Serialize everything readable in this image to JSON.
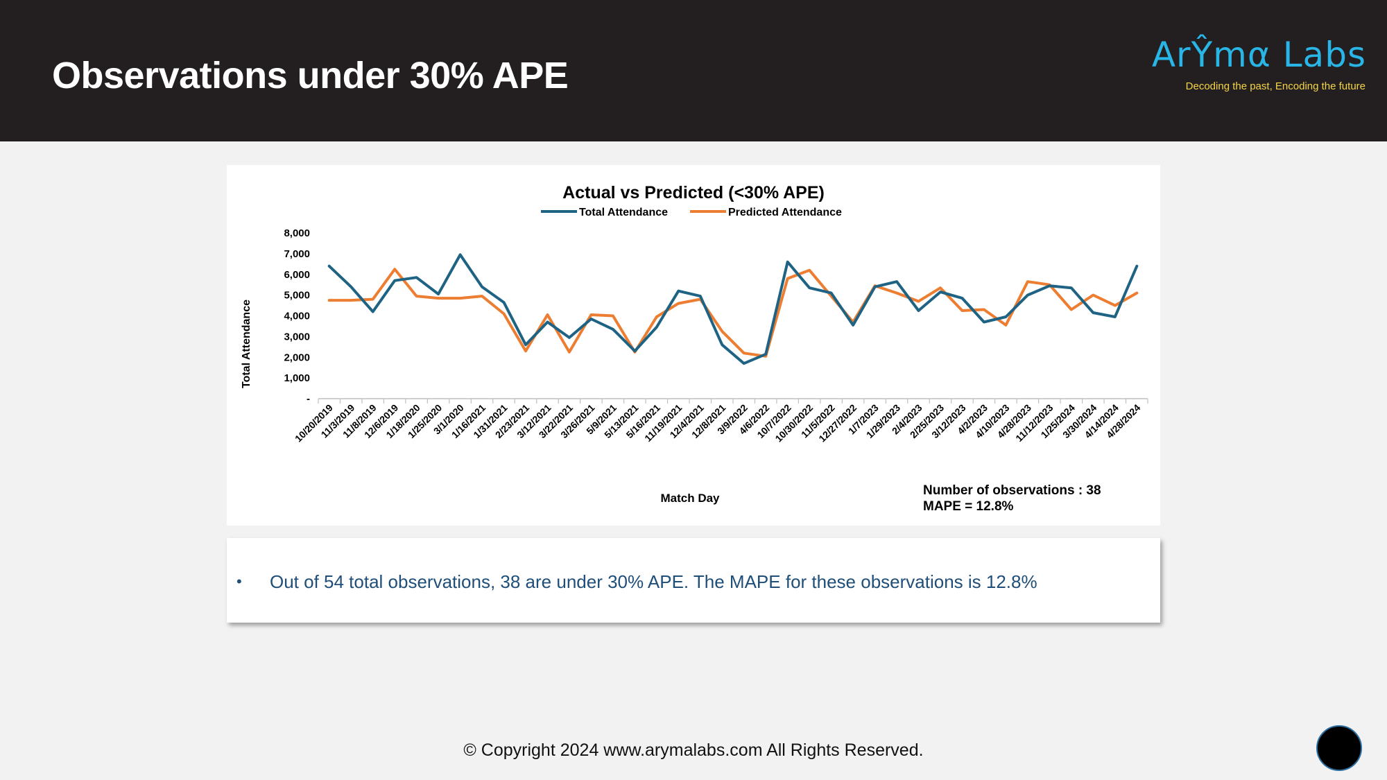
{
  "header": {
    "title": "Observations under 30% APE",
    "logo": {
      "name": "ArŶmα Labs",
      "tagline": "Decoding the past, Encoding the future"
    }
  },
  "chart_data": {
    "type": "line",
    "title": "Actual vs Predicted (<30% APE)",
    "xlabel": "Match Day",
    "ylabel": "Total Attendance",
    "ylim": [
      0,
      8000
    ],
    "yticks": [
      "-",
      "1,000",
      "2,000",
      "3,000",
      "4,000",
      "5,000",
      "6,000",
      "7,000",
      "8,000"
    ],
    "ytick_values": [
      0,
      1000,
      2000,
      3000,
      4000,
      5000,
      6000,
      7000,
      8000
    ],
    "legend_position": "top-center",
    "grid": false,
    "categories": [
      "10/20/2019",
      "11/3/2019",
      "11/8/2019",
      "12/6/2019",
      "1/18/2020",
      "1/25/2020",
      "3/1/2020",
      "1/16/2021",
      "1/31/2021",
      "2/23/2021",
      "3/12/2021",
      "3/22/2021",
      "3/26/2021",
      "5/9/2021",
      "5/13/2021",
      "5/16/2021",
      "11/19/2021",
      "12/4/2021",
      "12/8/2021",
      "3/9/2022",
      "4/6/2022",
      "10/7/2022",
      "10/30/2022",
      "11/5/2022",
      "12/27/2022",
      "1/7/2023",
      "1/29/2023",
      "2/4/2023",
      "2/25/2023",
      "3/12/2023",
      "4/2/2023",
      "4/10/2023",
      "4/28/2023",
      "11/12/2023",
      "1/25/2024",
      "3/30/2024",
      "4/14/2024",
      "4/28/2024"
    ],
    "series": [
      {
        "name": "Total Attendance",
        "color": "#1f6384",
        "values": [
          6400,
          5400,
          4200,
          5700,
          5850,
          5050,
          6950,
          5400,
          4650,
          2600,
          3700,
          2950,
          3850,
          3350,
          2300,
          3450,
          5200,
          4950,
          2600,
          1700,
          2150,
          6600,
          5350,
          5100,
          3550,
          5400,
          5650,
          4250,
          5150,
          4850,
          3700,
          3950,
          5000,
          5450,
          5350,
          4150,
          3950,
          6400
        ]
      },
      {
        "name": "Predicted Attendance",
        "color": "#ed7d31",
        "values": [
          4750,
          4750,
          4800,
          6250,
          4950,
          4850,
          4850,
          4950,
          4100,
          2300,
          4050,
          2250,
          4050,
          4000,
          2250,
          3950,
          4600,
          4800,
          3250,
          2200,
          2050,
          5800,
          6200,
          4950,
          3700,
          5450,
          5100,
          4700,
          5350,
          4250,
          4300,
          3550,
          5650,
          5500,
          4300,
          5000,
          4500,
          5100
        ]
      }
    ],
    "annotation": {
      "line1": "Number of observations : 38",
      "line2": "MAPE = 12.8%"
    }
  },
  "notes": {
    "bullet": "•",
    "items": [
      "Out of 54 total observations, 38 are under 30% APE. The MAPE for these observations is 12.8%"
    ]
  },
  "footer": {
    "copyright": "© Copyright 2024 www.arymalabs.com All Rights Reserved."
  }
}
